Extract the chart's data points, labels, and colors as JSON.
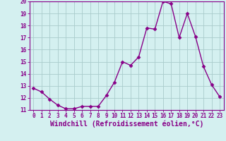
{
  "x": [
    0,
    1,
    2,
    3,
    4,
    5,
    6,
    7,
    8,
    9,
    10,
    11,
    12,
    13,
    14,
    15,
    16,
    17,
    18,
    19,
    20,
    21,
    22,
    23
  ],
  "y": [
    12.8,
    12.5,
    11.9,
    11.4,
    11.1,
    11.1,
    11.3,
    11.3,
    11.3,
    12.2,
    13.3,
    15.0,
    14.7,
    15.4,
    17.8,
    17.7,
    20.0,
    19.8,
    17.0,
    19.0,
    17.1,
    14.6,
    13.1,
    12.1
  ],
  "line_color": "#880088",
  "marker": "D",
  "marker_size": 2.5,
  "line_width": 1.0,
  "bg_color": "#d4f0f0",
  "grid_color": "#aacccc",
  "xlabel": "Windchill (Refroidissement éolien,°C)",
  "ylabel": "",
  "ylim": [
    11,
    20
  ],
  "xlim_min": -0.5,
  "xlim_max": 23.5,
  "yticks": [
    11,
    12,
    13,
    14,
    15,
    16,
    17,
    18,
    19,
    20
  ],
  "xticks": [
    0,
    1,
    2,
    3,
    4,
    5,
    6,
    7,
    8,
    9,
    10,
    11,
    12,
    13,
    14,
    15,
    16,
    17,
    18,
    19,
    20,
    21,
    22,
    23
  ],
  "tick_color": "#880088",
  "tick_fontsize": 5.5,
  "xlabel_fontsize": 7.0,
  "xlabel_color": "#880088",
  "spine_color": "#880088"
}
